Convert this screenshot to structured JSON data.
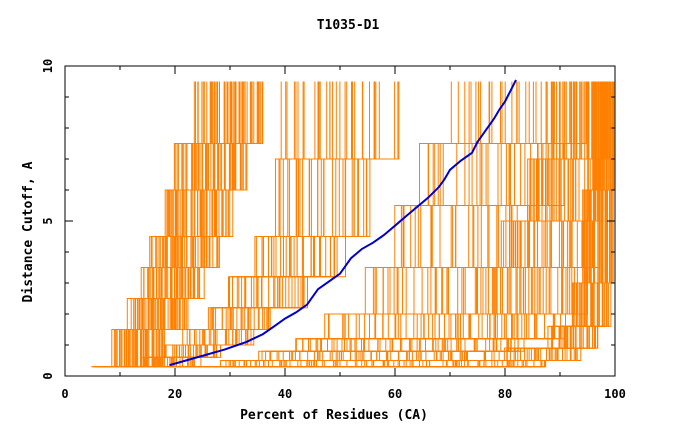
{
  "chart_data": {
    "type": "line",
    "title": "T1035-D1",
    "xlabel": "Percent of Residues (CA)",
    "ylabel": "Distance Cutoff, A",
    "xlim": [
      0,
      100
    ],
    "ylim": [
      0,
      10
    ],
    "x_ticks": [
      0,
      20,
      40,
      60,
      80,
      100
    ],
    "y_ticks": [
      0,
      5,
      10
    ],
    "x_tick_labels": [
      "0",
      "20",
      "40",
      "60",
      "80",
      "100"
    ],
    "y_tick_labels": [
      "0",
      "5",
      "10"
    ],
    "grid": false,
    "colors": {
      "background_series": "#ff8000",
      "highlight": "#0000cc",
      "axes": "#000000"
    },
    "highlight_series": {
      "x": [
        19,
        24,
        29,
        33,
        36,
        38,
        40,
        42,
        44,
        45,
        46,
        48,
        50,
        51,
        52,
        54,
        56,
        58,
        60,
        62,
        64,
        66,
        68,
        69,
        70,
        72,
        74,
        75,
        76,
        77,
        78,
        79,
        80,
        81,
        82
      ],
      "y": [
        0.35,
        0.6,
        0.85,
        1.1,
        1.35,
        1.6,
        1.85,
        2.05,
        2.3,
        2.55,
        2.8,
        3.05,
        3.3,
        3.55,
        3.8,
        4.1,
        4.3,
        4.55,
        4.85,
        5.15,
        5.45,
        5.75,
        6.1,
        6.35,
        6.65,
        6.95,
        7.2,
        7.55,
        7.8,
        8.05,
        8.3,
        8.6,
        8.85,
        9.2,
        9.55
      ]
    },
    "background_bands": [
      {
        "count": 60,
        "x": [
          [
            5,
            8
          ],
          [
            9,
            18
          ],
          [
            12,
            22
          ],
          [
            14,
            25
          ],
          [
            16,
            28
          ],
          [
            18,
            30
          ],
          [
            20,
            33
          ],
          [
            24,
            36
          ]
        ],
        "y": [
          0.3,
          1.5,
          2.5,
          3.5,
          4.5,
          6.0,
          7.5,
          9.5
        ]
      },
      {
        "count": 35,
        "x": [
          [
            8,
            16
          ],
          [
            14,
            24
          ],
          [
            18,
            28
          ],
          [
            22,
            34
          ],
          [
            26,
            38
          ],
          [
            30,
            44
          ],
          [
            34,
            50
          ],
          [
            38,
            56
          ],
          [
            40,
            60
          ]
        ],
        "y": [
          0.3,
          0.6,
          1.0,
          1.5,
          2.2,
          3.2,
          4.5,
          7.0,
          9.5
        ]
      },
      {
        "count": 35,
        "x": [
          [
            15,
            30
          ],
          [
            28,
            45
          ],
          [
            35,
            55
          ],
          [
            42,
            60
          ],
          [
            48,
            70
          ],
          [
            55,
            78
          ],
          [
            60,
            85
          ],
          [
            65,
            90
          ],
          [
            70,
            95
          ]
        ],
        "y": [
          0.3,
          0.5,
          0.8,
          1.2,
          2.0,
          3.5,
          5.5,
          7.5,
          9.5
        ]
      },
      {
        "count": 45,
        "x": [
          [
            20,
            45
          ],
          [
            45,
            70
          ],
          [
            55,
            78
          ],
          [
            62,
            84
          ],
          [
            70,
            90
          ],
          [
            76,
            94
          ],
          [
            80,
            97
          ],
          [
            84,
            98
          ],
          [
            88,
            99
          ]
        ],
        "y": [
          0.3,
          0.5,
          0.8,
          1.2,
          2.0,
          3.5,
          5.0,
          7.0,
          9.5
        ]
      },
      {
        "count": 40,
        "x": [
          [
            40,
            70
          ],
          [
            70,
            88
          ],
          [
            80,
            94
          ],
          [
            88,
            97
          ],
          [
            92,
            99
          ],
          [
            94,
            100
          ],
          [
            96,
            100
          ]
        ],
        "y": [
          0.3,
          0.5,
          0.9,
          1.6,
          3.0,
          6.0,
          9.5
        ]
      }
    ]
  }
}
